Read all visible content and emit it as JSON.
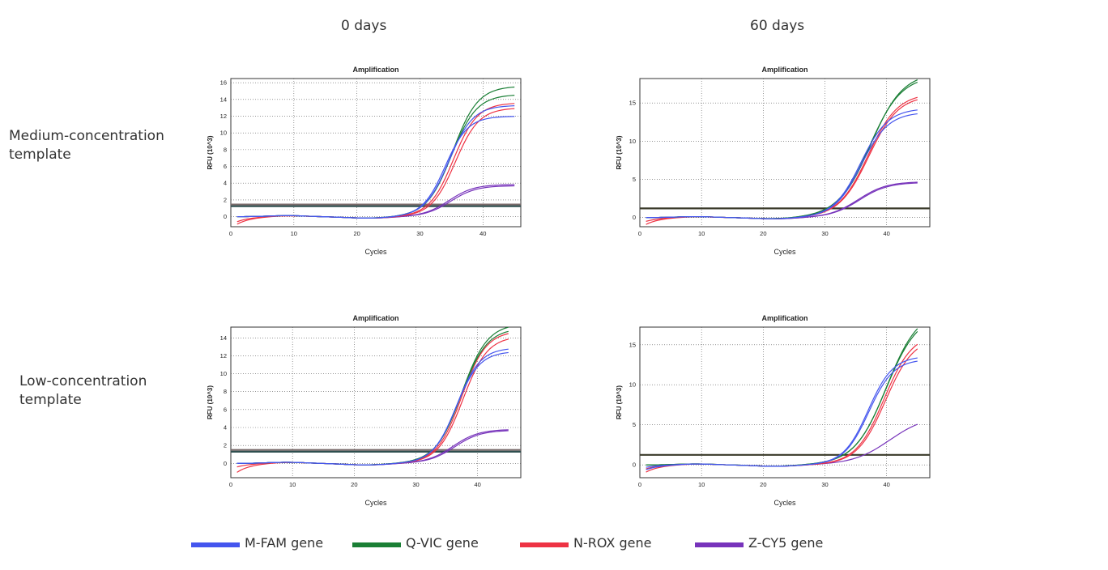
{
  "columns": [
    "0 days",
    "60 days"
  ],
  "rows": [
    {
      "line1": "Medium-concentration",
      "line2": "template"
    },
    {
      "line1": "Low-concentration",
      "line2": "template"
    }
  ],
  "legend": [
    {
      "name": "M-FAM gene",
      "color": "#4455ee"
    },
    {
      "name": "Q-VIC gene",
      "color": "#1a7f35"
    },
    {
      "name": "N-ROX gene",
      "color": "#ee3344"
    },
    {
      "name": "Z-CY5 gene",
      "color": "#7733bb"
    }
  ],
  "chart_data": [
    {
      "id": "medium-0days",
      "type": "line",
      "title": "Amplification",
      "xlabel": "Cycles",
      "ylabel": "RFU (10^3)",
      "xlim": [
        0,
        46
      ],
      "ylim": [
        -1.2,
        16.5
      ],
      "xticks": [
        0,
        10,
        20,
        30,
        40
      ],
      "yticks": [
        0,
        2,
        4,
        6,
        8,
        10,
        12,
        14,
        16
      ],
      "thresholds": [
        {
          "value": 1.45,
          "color": "#7a6a6a"
        },
        {
          "value": 1.25,
          "color": "#2f4f4f"
        }
      ],
      "series": [
        {
          "name": "M-FAM gene",
          "color": "#4455ee",
          "curves": [
            {
              "plateau": 12.0,
              "midpoint": 34.0,
              "slope": 1.8,
              "start": 0.0
            },
            {
              "plateau": 13.3,
              "midpoint": 34.6,
              "slope": 1.9,
              "start": 0.0
            }
          ]
        },
        {
          "name": "Q-VIC gene",
          "color": "#1a7f35",
          "curves": [
            {
              "plateau": 15.6,
              "midpoint": 35.2,
              "slope": 2.0,
              "start": 0.0
            },
            {
              "plateau": 14.6,
              "midpoint": 35.0,
              "slope": 2.0,
              "start": 0.0
            }
          ]
        },
        {
          "name": "N-ROX gene",
          "color": "#ee3344",
          "curves": [
            {
              "plateau": 13.6,
              "midpoint": 35.3,
              "slope": 1.9,
              "start": -0.9
            },
            {
              "plateau": 13.0,
              "midpoint": 35.6,
              "slope": 1.9,
              "start": -0.6
            }
          ]
        },
        {
          "name": "Z-CY5 gene",
          "color": "#7733bb",
          "curves": [
            {
              "plateau": 3.85,
              "midpoint": 34.6,
              "slope": 2.0,
              "start": 0.0
            },
            {
              "plateau": 3.7,
              "midpoint": 34.9,
              "slope": 2.0,
              "start": 0.0
            }
          ]
        }
      ]
    },
    {
      "id": "medium-60days",
      "type": "line",
      "title": "Amplification",
      "xlabel": "Cycles",
      "ylabel": "RFU (10^3)",
      "xlim": [
        0,
        47
      ],
      "ylim": [
        -1.2,
        18.2
      ],
      "xticks": [
        0,
        10,
        20,
        30,
        40
      ],
      "yticks": [
        0,
        5,
        10,
        15
      ],
      "thresholds": [
        {
          "value": 1.2,
          "color": "#3a3a2a"
        }
      ],
      "series": [
        {
          "name": "M-FAM gene",
          "color": "#4455ee",
          "curves": [
            {
              "plateau": 14.3,
              "midpoint": 35.8,
              "slope": 2.2,
              "start": 0.0
            },
            {
              "plateau": 13.8,
              "midpoint": 35.9,
              "slope": 2.2,
              "start": 0.0
            }
          ]
        },
        {
          "name": "Q-VIC gene",
          "color": "#1a7f35",
          "curves": [
            {
              "plateau": 19.0,
              "midpoint": 37.4,
              "slope": 2.6,
              "start": 0.0
            },
            {
              "plateau": 18.6,
              "midpoint": 37.2,
              "slope": 2.6,
              "start": 0.0
            }
          ]
        },
        {
          "name": "N-ROX gene",
          "color": "#ee3344",
          "curves": [
            {
              "plateau": 16.3,
              "midpoint": 37.0,
              "slope": 2.4,
              "start": -0.9
            },
            {
              "plateau": 16.0,
              "midpoint": 37.1,
              "slope": 2.4,
              "start": -0.5
            }
          ]
        },
        {
          "name": "Z-CY5 gene",
          "color": "#7733bb",
          "curves": [
            {
              "plateau": 4.7,
              "midpoint": 35.4,
              "slope": 2.3,
              "start": 0.0
            },
            {
              "plateau": 4.6,
              "midpoint": 35.6,
              "slope": 2.3,
              "start": 0.0
            }
          ]
        }
      ]
    },
    {
      "id": "low-0days",
      "type": "line",
      "title": "Amplification",
      "xlabel": "Cycles",
      "ylabel": "RFU (10^3)",
      "xlim": [
        0,
        47
      ],
      "ylim": [
        -1.6,
        15.2
      ],
      "xticks": [
        0,
        10,
        20,
        30,
        40
      ],
      "yticks": [
        0,
        2,
        4,
        6,
        8,
        10,
        12,
        14
      ],
      "thresholds": [
        {
          "value": 1.5,
          "color": "#7a6a6a"
        },
        {
          "value": 1.3,
          "color": "#2f4f4f"
        }
      ],
      "series": [
        {
          "name": "M-FAM gene",
          "color": "#4455ee",
          "curves": [
            {
              "plateau": 12.5,
              "midpoint": 36.5,
              "slope": 1.9,
              "start": 0.0
            },
            {
              "plateau": 12.9,
              "midpoint": 36.6,
              "slope": 1.9,
              "start": 0.0
            }
          ]
        },
        {
          "name": "Q-VIC gene",
          "color": "#1a7f35",
          "curves": [
            {
              "plateau": 15.6,
              "midpoint": 37.4,
              "slope": 2.1,
              "start": 0.0
            },
            {
              "plateau": 15.1,
              "midpoint": 37.3,
              "slope": 2.1,
              "start": 0.0
            }
          ]
        },
        {
          "name": "N-ROX gene",
          "color": "#ee3344",
          "curves": [
            {
              "plateau": 14.8,
              "midpoint": 37.4,
              "slope": 2.0,
              "start": -1.0
            },
            {
              "plateau": 14.2,
              "midpoint": 37.6,
              "slope": 2.0,
              "start": -0.4
            }
          ]
        },
        {
          "name": "Z-CY5 gene",
          "color": "#7733bb",
          "curves": [
            {
              "plateau": 3.8,
              "midpoint": 36.0,
              "slope": 2.1,
              "start": 0.0
            },
            {
              "plateau": 3.7,
              "midpoint": 36.3,
              "slope": 2.1,
              "start": 0.0
            }
          ]
        }
      ]
    },
    {
      "id": "low-60days",
      "type": "line",
      "title": "Amplification",
      "xlabel": "Cycles",
      "ylabel": "RFU (10^3)",
      "xlim": [
        0,
        47
      ],
      "ylim": [
        -1.6,
        17.2
      ],
      "xticks": [
        0,
        10,
        20,
        30,
        40
      ],
      "yticks": [
        0,
        5,
        10,
        15
      ],
      "thresholds": [
        {
          "value": 1.25,
          "color": "#3a3a2a"
        }
      ],
      "series": [
        {
          "name": "M-FAM gene",
          "color": "#4455ee",
          "curves": [
            {
              "plateau": 13.6,
              "midpoint": 37.0,
              "slope": 2.0,
              "start": -0.6
            },
            {
              "plateau": 13.2,
              "midpoint": 37.1,
              "slope": 2.0,
              "start": -0.3
            }
          ]
        },
        {
          "name": "Q-VIC gene",
          "color": "#1a7f35",
          "curves": [
            {
              "plateau": 19.5,
              "midpoint": 40.0,
              "slope": 2.6,
              "start": 0.0
            },
            {
              "plateau": 19.0,
              "midpoint": 39.9,
              "slope": 2.6,
              "start": 0.0
            }
          ]
        },
        {
          "name": "N-ROX gene",
          "color": "#ee3344",
          "curves": [
            {
              "plateau": 16.5,
              "midpoint": 39.6,
              "slope": 2.3,
              "start": -0.9
            },
            {
              "plateau": 16.0,
              "midpoint": 39.8,
              "slope": 2.3,
              "start": -0.5
            }
          ]
        },
        {
          "name": "Z-CY5 gene",
          "color": "#7733bb",
          "curves": [
            {
              "plateau": 6.2,
              "midpoint": 40.5,
              "slope": 3.0,
              "start": 0.0
            }
          ]
        }
      ]
    }
  ]
}
